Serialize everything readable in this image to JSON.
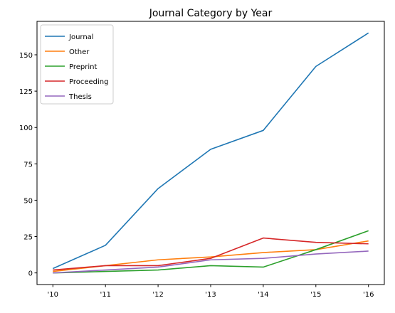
{
  "chart_data": {
    "type": "line",
    "title": "Journal Category by Year",
    "xlabel": "",
    "ylabel": "",
    "categories": [
      "'10",
      "'11",
      "'12",
      "'13",
      "'14",
      "'15",
      "'16"
    ],
    "ylim": [
      -8,
      173
    ],
    "yticks": [
      0,
      25,
      50,
      75,
      100,
      125,
      150
    ],
    "grid": false,
    "legend_position": "top-left",
    "series": [
      {
        "name": "Journal",
        "color": "#1f77b4",
        "values": [
          3,
          19,
          58,
          85,
          98,
          142,
          165
        ]
      },
      {
        "name": "Other",
        "color": "#ff7f0e",
        "values": [
          1,
          5,
          9,
          11,
          14,
          16,
          22
        ]
      },
      {
        "name": "Preprint",
        "color": "#2ca02c",
        "values": [
          0,
          1,
          2,
          5,
          4,
          16,
          29
        ]
      },
      {
        "name": "Proceeding",
        "color": "#d62728",
        "values": [
          2,
          5,
          5,
          10,
          24,
          21,
          20
        ]
      },
      {
        "name": "Thesis",
        "color": "#9467bd",
        "values": [
          0,
          2,
          4,
          9,
          10,
          13,
          15
        ]
      }
    ]
  }
}
